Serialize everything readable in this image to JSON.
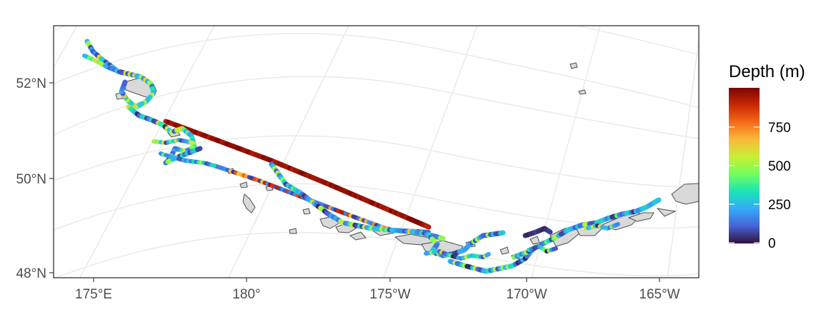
{
  "map": {
    "x_axis_labels": [
      "175°E",
      "180°",
      "175°W",
      "170°W",
      "165°W"
    ],
    "y_axis_labels": [
      "52°N",
      "50°N",
      "48°N"
    ],
    "colors": {
      "panel_border": "#333333",
      "graticule": "#ebebeb",
      "land_fill": "#d9d9d9",
      "land_outline": "#4d4d4d",
      "tick_text": "#4d4d4d"
    }
  },
  "legend": {
    "title": "Depth (m)",
    "ticks": [
      "750",
      "500",
      "250",
      "0"
    ],
    "max_depth": 1000,
    "colormap": "turbo",
    "gradient_stops": [
      "#30123b",
      "#4662d7",
      "#36aaf9",
      "#1ae4b6",
      "#72fe5e",
      "#c8ef34",
      "#faba39",
      "#f66b19",
      "#ca2a04",
      "#7a0403"
    ]
  }
}
